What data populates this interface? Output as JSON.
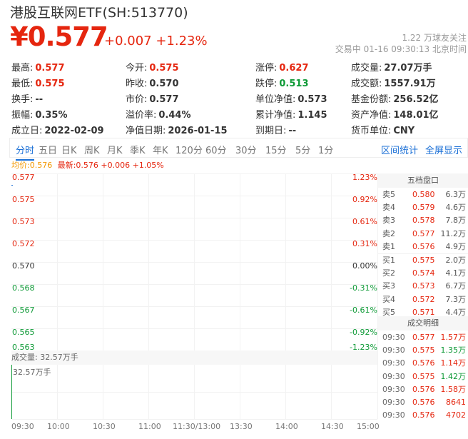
{
  "header": {
    "title": "港股互联网ETF(SH:513770)",
    "price": "¥0.577",
    "change": "+0.007 +1.23%",
    "followers": "1.22 万球友关注",
    "status": "交易中 01-16 09:30:13 北京时间"
  },
  "quotes": [
    [
      {
        "label": "最高:",
        "value": "0.577",
        "color": "red"
      },
      {
        "label": "今开:",
        "value": "0.575",
        "color": "red"
      },
      {
        "label": "涨停:",
        "value": "0.627",
        "color": "red"
      },
      {
        "label": "成交量:",
        "value": "27.07万手",
        "color": ""
      }
    ],
    [
      {
        "label": "最低:",
        "value": "0.575",
        "color": "red"
      },
      {
        "label": "昨收:",
        "value": "0.570",
        "color": ""
      },
      {
        "label": "跌停:",
        "value": "0.513",
        "color": "green"
      },
      {
        "label": "成交额:",
        "value": "1557.91万",
        "color": ""
      }
    ],
    [
      {
        "label": "换手:",
        "value": "--",
        "color": ""
      },
      {
        "label": "市价:",
        "value": "0.577",
        "color": ""
      },
      {
        "label": "单位净值:",
        "value": "0.573",
        "color": ""
      },
      {
        "label": "基金份额:",
        "value": "256.52亿",
        "color": ""
      }
    ],
    [
      {
        "label": "振幅:",
        "value": "0.35%",
        "color": ""
      },
      {
        "label": "溢价率:",
        "value": "0.44%",
        "color": ""
      },
      {
        "label": "累计净值:",
        "value": "1.145",
        "color": ""
      },
      {
        "label": "资产净值:",
        "value": "148.01亿",
        "color": ""
      }
    ],
    [
      {
        "label": "成立日:",
        "value": "2022-02-09",
        "color": ""
      },
      {
        "label": "净值日期:",
        "value": "2026-01-15",
        "color": ""
      },
      {
        "label": "到期日:",
        "value": "--",
        "color": ""
      },
      {
        "label": "货币单位:",
        "value": "CNY",
        "color": ""
      }
    ]
  ],
  "tabs": [
    "分时",
    "五日",
    "日K",
    "周K",
    "月K",
    "季K",
    "年K",
    "120分",
    "60分",
    "30分",
    "15分",
    "5分",
    "1分"
  ],
  "active_tab": "分时",
  "links": [
    "区间统计",
    "全屏显示"
  ],
  "legend": {
    "avg": "均价:0.576",
    "latest": "最新:0.576 +0.006 +1.05%"
  },
  "chart": {
    "y_left": [
      "0.577",
      "0.575",
      "0.573",
      "0.572",
      "0.570",
      "0.568",
      "0.567",
      "0.565",
      "0.563"
    ],
    "y_right": [
      "1.23%",
      "0.92%",
      "0.61%",
      "0.31%",
      "0.00%",
      "-0.31%",
      "-0.61%",
      "-0.92%",
      "-1.23%"
    ],
    "x_labels": [
      "09:30",
      "10:00",
      "10:30",
      "11:00",
      "11:30/13:00",
      "13:30",
      "14:00",
      "14:30",
      "15:00"
    ],
    "volume_header": "成交量: 32.57万手",
    "volume_max": "32.57万手"
  },
  "orderbook": {
    "title": "五档盘口",
    "rows": [
      [
        "卖5",
        "0.580",
        "6.3万"
      ],
      [
        "卖4",
        "0.579",
        "4.6万"
      ],
      [
        "卖3",
        "0.578",
        "7.8万"
      ],
      [
        "卖2",
        "0.577",
        "11.2万"
      ],
      [
        "卖1",
        "0.576",
        "4.9万"
      ],
      [
        "买1",
        "0.575",
        "2.0万"
      ],
      [
        "买2",
        "0.574",
        "4.1万"
      ],
      [
        "买3",
        "0.573",
        "6.7万"
      ],
      [
        "买4",
        "0.572",
        "7.3万"
      ],
      [
        "买5",
        "0.571",
        "4.4万"
      ]
    ]
  },
  "trades": {
    "title": "成交明细",
    "rows": [
      [
        "09:30",
        "0.577",
        "1.57万",
        "red"
      ],
      [
        "09:30",
        "0.575",
        "1.35万",
        "green"
      ],
      [
        "09:30",
        "0.576",
        "1.14万",
        "red"
      ],
      [
        "09:30",
        "0.575",
        "1.42万",
        "green"
      ],
      [
        "09:30",
        "0.576",
        "1.58万",
        "red"
      ],
      [
        "09:30",
        "0.576",
        "8641",
        "red"
      ],
      [
        "09:30",
        "0.576",
        "4702",
        "red"
      ]
    ]
  },
  "colors": {
    "up": "#e5260f",
    "down": "#0f9a37",
    "accent": "#1a6fd6",
    "avg": "#f39800"
  }
}
